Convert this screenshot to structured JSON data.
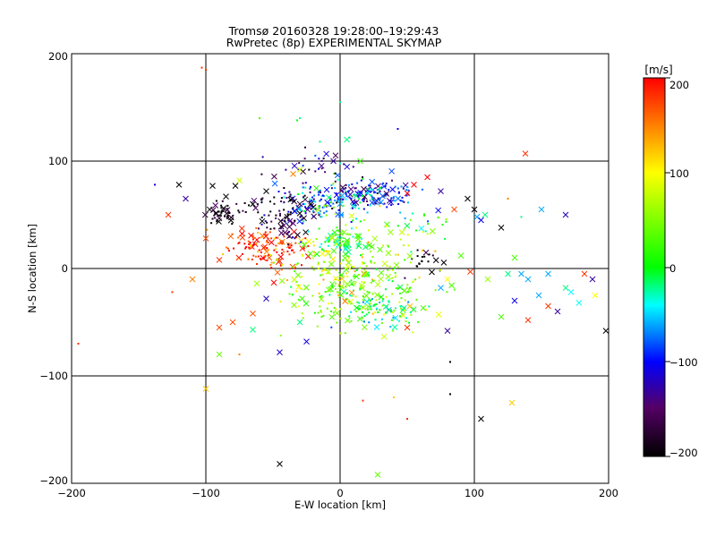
{
  "chart_data": [
    {
      "type": "scatter",
      "title": "Tromsø 20160328 19:28:00–19:29:43",
      "subtitle": "RwPretec (8p) EXPERIMENTAL SKYMAP",
      "xlabel": "E-W location [km]",
      "ylabel": "N-S location [km]",
      "xlim": [
        -200,
        200
      ],
      "ylim": [
        -200,
        200
      ],
      "xticks": [
        "−200",
        "−100",
        "0",
        "100",
        "200"
      ],
      "yticks": [
        "200",
        "100",
        "0",
        "−100",
        "−200"
      ],
      "grid": true,
      "marker_styles": [
        "dot",
        "cross"
      ],
      "color_by": "velocity [m/s]",
      "clusters": [
        {
          "x": -55,
          "y": 20,
          "sx": 14,
          "sy": 10,
          "v": 185,
          "n": 140
        },
        {
          "x": -85,
          "y": 52,
          "sx": 5,
          "sy": 5,
          "v": -200,
          "n": 45
        },
        {
          "x": -40,
          "y": 45,
          "sx": 14,
          "sy": 9,
          "v": -160,
          "n": 60
        },
        {
          "x": -20,
          "y": 60,
          "sx": 12,
          "sy": 10,
          "v": -80,
          "n": 60
        },
        {
          "x": 15,
          "y": 70,
          "sx": 14,
          "sy": 6,
          "v": -110,
          "n": 90
        },
        {
          "x": 40,
          "y": 70,
          "sx": 10,
          "sy": 6,
          "v": -90,
          "n": 40
        },
        {
          "x": 0,
          "y": 65,
          "sx": 20,
          "sy": 12,
          "v": -40,
          "n": 70
        },
        {
          "x": 0,
          "y": 25,
          "sx": 8,
          "sy": 5,
          "v": 10,
          "n": 60
        },
        {
          "x": 15,
          "y": -20,
          "sx": 25,
          "sy": 18,
          "v": 35,
          "n": 190
        },
        {
          "x": 30,
          "y": -40,
          "sx": 14,
          "sy": 7,
          "v": -20,
          "n": 60
        },
        {
          "x": -10,
          "y": -10,
          "sx": 20,
          "sy": 15,
          "v": 80,
          "n": 70
        },
        {
          "x": -10,
          "y": 95,
          "sx": 22,
          "sy": 10,
          "v": -150,
          "n": 35
        },
        {
          "x": 60,
          "y": 5,
          "sx": 8,
          "sy": 8,
          "v": -200,
          "n": 20
        },
        {
          "x": 20,
          "y": 10,
          "sx": 30,
          "sy": 25,
          "v": 60,
          "n": 90
        },
        {
          "x": -40,
          "y": 60,
          "sx": 15,
          "sy": 8,
          "v": -200,
          "n": 40
        },
        {
          "x": 60,
          "y": 40,
          "sx": 12,
          "sy": 12,
          "v": 0,
          "n": 20
        }
      ],
      "points": [
        {
          "x": -120,
          "y": 78,
          "v": -200,
          "m": "cross"
        },
        {
          "x": -128,
          "y": 50,
          "v": 180,
          "m": "cross"
        },
        {
          "x": -115,
          "y": 65,
          "v": -130,
          "m": "cross"
        },
        {
          "x": -100,
          "y": 28,
          "v": 170,
          "m": "cross"
        },
        {
          "x": -90,
          "y": 8,
          "v": 180,
          "m": "cross"
        },
        {
          "x": -110,
          "y": -10,
          "v": 150,
          "m": "cross"
        },
        {
          "x": -125,
          "y": -22,
          "v": 180,
          "m": "dot"
        },
        {
          "x": -138,
          "y": 78,
          "v": -110,
          "m": "dot"
        },
        {
          "x": -90,
          "y": -55,
          "v": 170,
          "m": "cross"
        },
        {
          "x": -90,
          "y": -80,
          "v": 40,
          "m": "cross"
        },
        {
          "x": -80,
          "y": -50,
          "v": 170,
          "m": "cross"
        },
        {
          "x": -65,
          "y": -57,
          "v": -20,
          "m": "cross"
        },
        {
          "x": -65,
          "y": -42,
          "v": 170,
          "m": "cross"
        },
        {
          "x": -55,
          "y": -28,
          "v": -120,
          "m": "cross"
        },
        {
          "x": -45,
          "y": -78,
          "v": -120,
          "m": "cross"
        },
        {
          "x": -30,
          "y": -50,
          "v": -20,
          "m": "cross"
        },
        {
          "x": -25,
          "y": -68,
          "v": -110,
          "m": "cross"
        },
        {
          "x": -100,
          "y": -112,
          "v": 120,
          "m": "cross"
        },
        {
          "x": -45,
          "y": -182,
          "v": -200,
          "m": "cross"
        },
        {
          "x": 28,
          "y": -192,
          "v": 40,
          "m": "cross"
        },
        {
          "x": -100,
          "y": 185,
          "v": 180,
          "m": "dot"
        },
        {
          "x": -103,
          "y": 187,
          "v": 180,
          "m": "dot"
        },
        {
          "x": -195,
          "y": -70,
          "v": 180,
          "m": "dot"
        },
        {
          "x": -95,
          "y": 77,
          "v": -200,
          "m": "cross"
        },
        {
          "x": -78,
          "y": 77,
          "v": -200,
          "m": "cross"
        },
        {
          "x": -65,
          "y": 60,
          "v": -200,
          "m": "cross"
        },
        {
          "x": -75,
          "y": 82,
          "v": 80,
          "m": "cross"
        },
        {
          "x": -85,
          "y": 67,
          "v": -200,
          "m": "cross"
        },
        {
          "x": -55,
          "y": 72,
          "v": -200,
          "m": "cross"
        },
        {
          "x": -35,
          "y": 88,
          "v": 150,
          "m": "cross"
        },
        {
          "x": -30,
          "y": 92,
          "v": 80,
          "m": "cross"
        },
        {
          "x": -15,
          "y": 118,
          "v": -20,
          "m": "dot"
        },
        {
          "x": 5,
          "y": 120,
          "v": -20,
          "m": "cross"
        },
        {
          "x": 15,
          "y": 100,
          "v": 20,
          "m": "cross"
        },
        {
          "x": -5,
          "y": 100,
          "v": -130,
          "m": "cross"
        },
        {
          "x": 7,
          "y": 122,
          "v": -20,
          "m": "dot"
        },
        {
          "x": 0,
          "y": 155,
          "v": -20,
          "m": "dot"
        },
        {
          "x": -60,
          "y": 140,
          "v": 30,
          "m": "dot"
        },
        {
          "x": -32,
          "y": 138,
          "v": 0,
          "m": "dot"
        },
        {
          "x": -30,
          "y": 140,
          "v": -20,
          "m": "dot"
        },
        {
          "x": 43,
          "y": 130,
          "v": -110,
          "m": "dot"
        },
        {
          "x": 55,
          "y": 78,
          "v": 200,
          "m": "cross"
        },
        {
          "x": 65,
          "y": 85,
          "v": 200,
          "m": "cross"
        },
        {
          "x": 50,
          "y": 70,
          "v": 200,
          "m": "cross"
        },
        {
          "x": 75,
          "y": 72,
          "v": -130,
          "m": "cross"
        },
        {
          "x": 85,
          "y": 55,
          "v": 170,
          "m": "cross"
        },
        {
          "x": 95,
          "y": 65,
          "v": -200,
          "m": "cross"
        },
        {
          "x": 100,
          "y": 55,
          "v": -200,
          "m": "cross"
        },
        {
          "x": 102,
          "y": 48,
          "v": -60,
          "m": "cross"
        },
        {
          "x": 105,
          "y": 45,
          "v": -110,
          "m": "cross"
        },
        {
          "x": 108,
          "y": 50,
          "v": -20,
          "m": "cross"
        },
        {
          "x": 120,
          "y": 38,
          "v": -200,
          "m": "cross"
        },
        {
          "x": 138,
          "y": 107,
          "v": 180,
          "m": "cross"
        },
        {
          "x": 125,
          "y": 65,
          "v": 150,
          "m": "dot"
        },
        {
          "x": 135,
          "y": 48,
          "v": -20,
          "m": "dot"
        },
        {
          "x": 150,
          "y": 55,
          "v": -60,
          "m": "cross"
        },
        {
          "x": 168,
          "y": 50,
          "v": -120,
          "m": "cross"
        },
        {
          "x": 90,
          "y": 12,
          "v": 30,
          "m": "cross"
        },
        {
          "x": 97,
          "y": -3,
          "v": 180,
          "m": "cross"
        },
        {
          "x": 80,
          "y": -10,
          "v": 100,
          "m": "cross"
        },
        {
          "x": 75,
          "y": -18,
          "v": -60,
          "m": "cross"
        },
        {
          "x": 130,
          "y": 10,
          "v": 30,
          "m": "cross"
        },
        {
          "x": 135,
          "y": -5,
          "v": -60,
          "m": "cross"
        },
        {
          "x": 140,
          "y": -10,
          "v": -60,
          "m": "cross"
        },
        {
          "x": 125,
          "y": -5,
          "v": -20,
          "m": "cross"
        },
        {
          "x": 155,
          "y": -5,
          "v": -60,
          "m": "cross"
        },
        {
          "x": 148,
          "y": -25,
          "v": -60,
          "m": "cross"
        },
        {
          "x": 168,
          "y": -18,
          "v": -20,
          "m": "cross"
        },
        {
          "x": 172,
          "y": -22,
          "v": -40,
          "m": "cross"
        },
        {
          "x": 178,
          "y": -32,
          "v": -40,
          "m": "cross"
        },
        {
          "x": 182,
          "y": -5,
          "v": 180,
          "m": "cross"
        },
        {
          "x": 190,
          "y": -25,
          "v": 100,
          "m": "cross"
        },
        {
          "x": 188,
          "y": -10,
          "v": -130,
          "m": "cross"
        },
        {
          "x": 198,
          "y": -58,
          "v": -200,
          "m": "cross"
        },
        {
          "x": 155,
          "y": -35,
          "v": 180,
          "m": "cross"
        },
        {
          "x": 162,
          "y": -40,
          "v": -130,
          "m": "cross"
        },
        {
          "x": 130,
          "y": -30,
          "v": -110,
          "m": "cross"
        },
        {
          "x": 140,
          "y": -48,
          "v": 180,
          "m": "cross"
        },
        {
          "x": 110,
          "y": -10,
          "v": 60,
          "m": "cross"
        },
        {
          "x": 120,
          "y": -45,
          "v": 30,
          "m": "cross"
        },
        {
          "x": 50,
          "y": -55,
          "v": 180,
          "m": "cross"
        },
        {
          "x": 80,
          "y": -58,
          "v": -130,
          "m": "cross"
        },
        {
          "x": 105,
          "y": -140,
          "v": -200,
          "m": "cross"
        },
        {
          "x": 128,
          "y": -125,
          "v": 120,
          "m": "cross"
        },
        {
          "x": 50,
          "y": -140,
          "v": 180,
          "m": "dot"
        },
        {
          "x": 40,
          "y": -120,
          "v": 120,
          "m": "dot"
        },
        {
          "x": 82,
          "y": -117,
          "v": -200,
          "m": "dot"
        },
        {
          "x": 82,
          "y": -87,
          "v": -200,
          "m": "dot"
        },
        {
          "x": 17,
          "y": -123,
          "v": 180,
          "m": "dot"
        },
        {
          "x": -75,
          "y": -80,
          "v": 150,
          "m": "dot"
        }
      ]
    },
    {
      "type": "colorbar",
      "label": "[m/s]",
      "range": [
        -200,
        200
      ],
      "ticks": [
        "200",
        "100",
        "0",
        "−100",
        "−200"
      ],
      "colormap": [
        "#000000",
        "#550066",
        "#0000ff",
        "#00ffff",
        "#00ff00",
        "#ffff00",
        "#ff0000"
      ]
    }
  ]
}
